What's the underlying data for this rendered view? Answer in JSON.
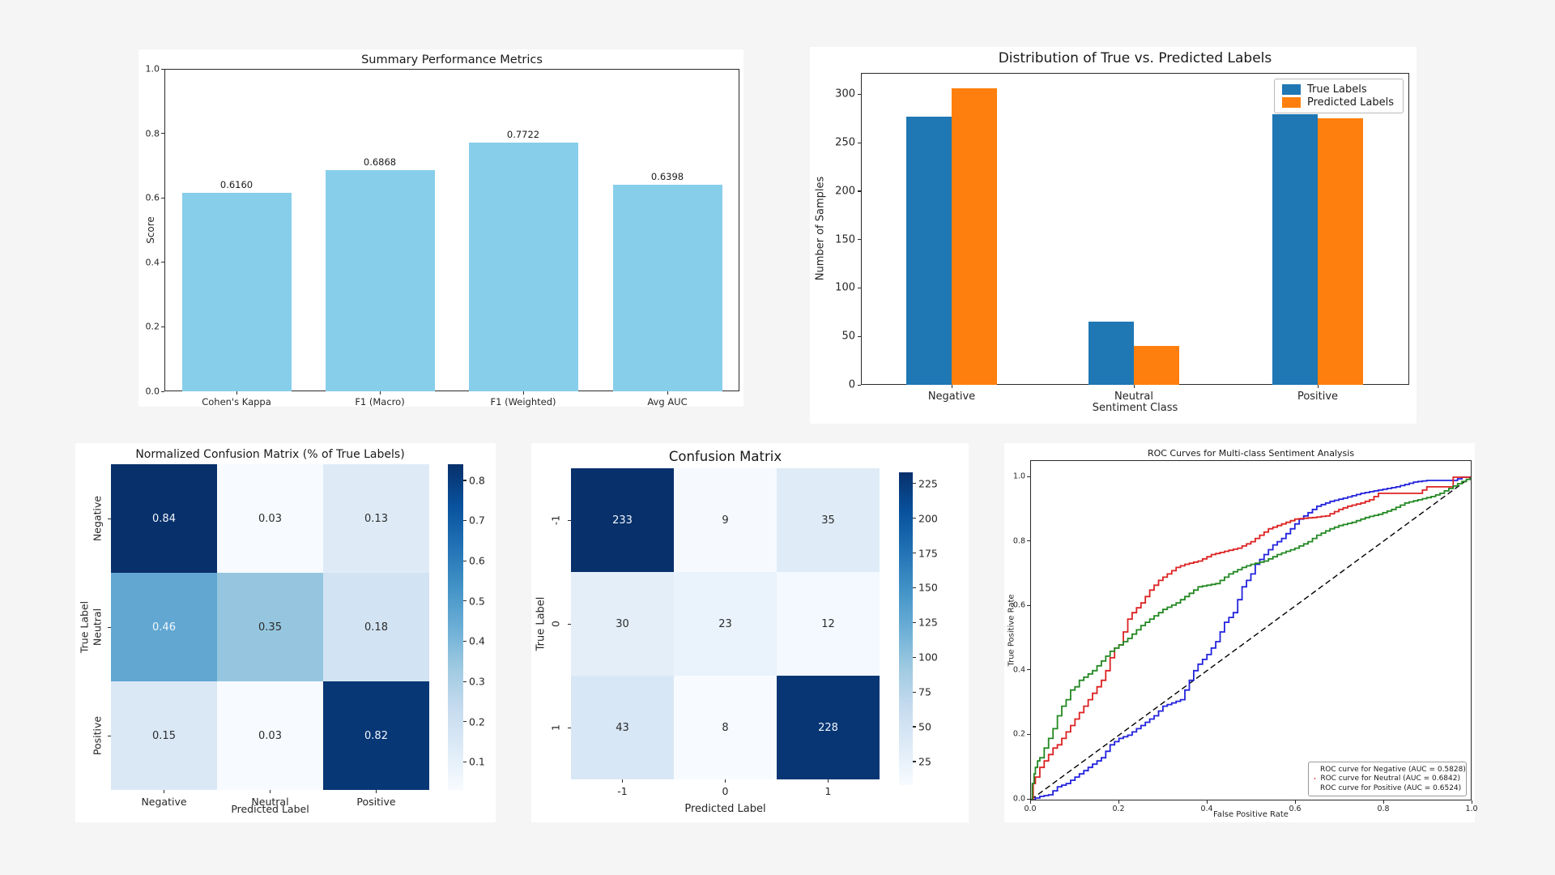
{
  "page": {
    "background": "#f5f5f6",
    "panel_background": "#ffffff"
  },
  "chart_data": [
    {
      "id": "summary",
      "type": "bar",
      "title": "Summary Performance Metrics",
      "xlabel": "",
      "ylabel": "Score",
      "categories": [
        "Cohen's Kappa",
        "F1 (Macro)",
        "F1 (Weighted)",
        "Avg AUC"
      ],
      "values": [
        0.616,
        0.6868,
        0.7722,
        0.6398
      ],
      "value_labels": [
        "0.6160",
        "0.6868",
        "0.7722",
        "0.6398"
      ],
      "bar_color": "#87ceeb",
      "ylim": [
        0.0,
        1.0
      ],
      "yticks": [
        0.0,
        0.2,
        0.4,
        0.6,
        0.8,
        1.0
      ],
      "grid": false,
      "legend_position": "none"
    },
    {
      "id": "distribution",
      "type": "bar",
      "title": "Distribution of True vs. Predicted Labels",
      "xlabel": "Sentiment Class",
      "ylabel": "Number of Samples",
      "categories": [
        "Negative",
        "Neutral",
        "Positive"
      ],
      "series": [
        {
          "name": "True Labels",
          "color": "#1f77b4",
          "values": [
            277,
            65,
            279
          ]
        },
        {
          "name": "Predicted Labels",
          "color": "#ff7f0e",
          "values": [
            306,
            40,
            275
          ]
        }
      ],
      "yticks": [
        0,
        50,
        100,
        150,
        200,
        250,
        300
      ],
      "ylim": [
        0,
        322
      ],
      "grid": false,
      "legend_position": "upper right"
    },
    {
      "id": "normalized_confusion_matrix",
      "type": "heatmap",
      "title": "Normalized Confusion Matrix (% of True Labels)",
      "xlabel": "Predicted Label",
      "ylabel": "True Label",
      "row_labels": [
        "Negative",
        "Neutral",
        "Positive"
      ],
      "col_labels": [
        "Negative",
        "Neutral",
        "Positive"
      ],
      "values": [
        [
          0.84,
          0.03,
          0.13
        ],
        [
          0.46,
          0.35,
          0.18
        ],
        [
          0.15,
          0.03,
          0.82
        ]
      ],
      "vmin": 0.03,
      "vmax": 0.84,
      "colormap": "Blues",
      "colorbar_ticks": [
        0.8,
        0.7,
        0.6,
        0.5,
        0.4,
        0.3,
        0.2,
        0.1
      ],
      "value_decimals": 2
    },
    {
      "id": "confusion_matrix",
      "type": "heatmap",
      "title": "Confusion Matrix",
      "xlabel": "Predicted Label",
      "ylabel": "True Label",
      "row_labels": [
        "-1",
        "0",
        "1"
      ],
      "col_labels": [
        "-1",
        "0",
        "1"
      ],
      "values": [
        [
          233,
          9,
          35
        ],
        [
          30,
          23,
          12
        ],
        [
          43,
          8,
          228
        ]
      ],
      "vmin": 8,
      "vmax": 233,
      "colormap": "Blues",
      "colorbar_ticks": [
        225,
        200,
        175,
        150,
        125,
        100,
        75,
        50,
        25
      ],
      "value_decimals": 0
    },
    {
      "id": "roc",
      "type": "line",
      "title": "ROC Curves for Multi-class Sentiment Analysis",
      "xlabel": "False Positive Rate",
      "ylabel": "True Positive Rate",
      "xticks": [
        0.0,
        0.2,
        0.4,
        0.6,
        0.8,
        1.0
      ],
      "yticks": [
        0.0,
        0.2,
        0.4,
        0.6,
        0.8,
        1.0
      ],
      "xlim": [
        0.0,
        1.0
      ],
      "ylim": [
        0.0,
        1.05
      ],
      "legend_position": "lower right",
      "diagonal_reference": {
        "style": "dashed",
        "color": "#000000",
        "from": [
          0,
          0
        ],
        "to": [
          1,
          1
        ]
      },
      "series": [
        {
          "name": "ROC curve for Negative (AUC = 0.5828)",
          "auc": 0.5828,
          "color": "#2222dd",
          "points": [
            [
              0,
              0
            ],
            [
              0.02,
              0.01
            ],
            [
              0.04,
              0.015
            ],
            [
              0.06,
              0.04
            ],
            [
              0.08,
              0.05
            ],
            [
              0.1,
              0.07
            ],
            [
              0.12,
              0.09
            ],
            [
              0.14,
              0.11
            ],
            [
              0.16,
              0.13
            ],
            [
              0.18,
              0.17
            ],
            [
              0.2,
              0.19
            ],
            [
              0.22,
              0.2
            ],
            [
              0.24,
              0.22
            ],
            [
              0.26,
              0.24
            ],
            [
              0.28,
              0.26
            ],
            [
              0.3,
              0.29
            ],
            [
              0.32,
              0.3
            ],
            [
              0.34,
              0.31
            ],
            [
              0.35,
              0.34
            ],
            [
              0.36,
              0.37
            ],
            [
              0.37,
              0.4
            ],
            [
              0.38,
              0.42
            ],
            [
              0.4,
              0.45
            ],
            [
              0.42,
              0.49
            ],
            [
              0.43,
              0.52
            ],
            [
              0.44,
              0.55
            ],
            [
              0.46,
              0.58
            ],
            [
              0.47,
              0.62
            ],
            [
              0.48,
              0.66
            ],
            [
              0.5,
              0.7
            ],
            [
              0.51,
              0.73
            ],
            [
              0.53,
              0.76
            ],
            [
              0.55,
              0.79
            ],
            [
              0.57,
              0.81
            ],
            [
              0.59,
              0.84
            ],
            [
              0.61,
              0.87
            ],
            [
              0.63,
              0.89
            ],
            [
              0.65,
              0.91
            ],
            [
              0.68,
              0.925
            ],
            [
              0.71,
              0.935
            ],
            [
              0.75,
              0.95
            ],
            [
              0.79,
              0.96
            ],
            [
              0.83,
              0.97
            ],
            [
              0.87,
              0.985
            ],
            [
              0.9,
              0.99
            ],
            [
              0.96,
              0.99
            ],
            [
              0.98,
              1
            ],
            [
              1,
              1
            ]
          ]
        },
        {
          "name": "ROC curve for Neutral (AUC = 0.6842)",
          "auc": 0.6842,
          "color": "#dd2222",
          "points": [
            [
              0,
              0
            ],
            [
              0.005,
              0.05
            ],
            [
              0.01,
              0.07
            ],
            [
              0.02,
              0.1
            ],
            [
              0.03,
              0.12
            ],
            [
              0.04,
              0.14
            ],
            [
              0.05,
              0.16
            ],
            [
              0.06,
              0.17
            ],
            [
              0.07,
              0.19
            ],
            [
              0.08,
              0.21
            ],
            [
              0.09,
              0.23
            ],
            [
              0.1,
              0.25
            ],
            [
              0.11,
              0.27
            ],
            [
              0.12,
              0.29
            ],
            [
              0.13,
              0.31
            ],
            [
              0.14,
              0.33
            ],
            [
              0.15,
              0.35
            ],
            [
              0.16,
              0.37
            ],
            [
              0.17,
              0.4
            ],
            [
              0.18,
              0.44
            ],
            [
              0.19,
              0.47
            ],
            [
              0.2,
              0.48
            ],
            [
              0.21,
              0.52
            ],
            [
              0.22,
              0.56
            ],
            [
              0.23,
              0.58
            ],
            [
              0.25,
              0.61
            ],
            [
              0.27,
              0.65
            ],
            [
              0.29,
              0.68
            ],
            [
              0.31,
              0.7
            ],
            [
              0.33,
              0.72
            ],
            [
              0.35,
              0.73
            ],
            [
              0.38,
              0.74
            ],
            [
              0.41,
              0.76
            ],
            [
              0.44,
              0.77
            ],
            [
              0.47,
              0.78
            ],
            [
              0.5,
              0.8
            ],
            [
              0.52,
              0.82
            ],
            [
              0.54,
              0.84
            ],
            [
              0.56,
              0.85
            ],
            [
              0.58,
              0.86
            ],
            [
              0.6,
              0.87
            ],
            [
              0.64,
              0.875
            ],
            [
              0.67,
              0.88
            ],
            [
              0.7,
              0.9
            ],
            [
              0.72,
              0.91
            ],
            [
              0.75,
              0.92
            ],
            [
              0.77,
              0.93
            ],
            [
              0.79,
              0.95
            ],
            [
              0.88,
              0.95
            ],
            [
              0.9,
              0.97
            ],
            [
              0.95,
              0.97
            ],
            [
              0.96,
              1
            ],
            [
              1,
              1
            ]
          ]
        },
        {
          "name": "ROC curve for Positive (AUC = 0.6524)",
          "auc": 0.6524,
          "color": "#228822",
          "points": [
            [
              0,
              0
            ],
            [
              0.003,
              0.05
            ],
            [
              0.007,
              0.08
            ],
            [
              0.01,
              0.1
            ],
            [
              0.015,
              0.12
            ],
            [
              0.02,
              0.13
            ],
            [
              0.03,
              0.16
            ],
            [
              0.04,
              0.19
            ],
            [
              0.05,
              0.22
            ],
            [
              0.06,
              0.26
            ],
            [
              0.07,
              0.29
            ],
            [
              0.08,
              0.31
            ],
            [
              0.09,
              0.34
            ],
            [
              0.1,
              0.35
            ],
            [
              0.11,
              0.37
            ],
            [
              0.12,
              0.38
            ],
            [
              0.13,
              0.39
            ],
            [
              0.14,
              0.4
            ],
            [
              0.16,
              0.43
            ],
            [
              0.18,
              0.46
            ],
            [
              0.2,
              0.48
            ],
            [
              0.22,
              0.5
            ],
            [
              0.25,
              0.54
            ],
            [
              0.28,
              0.57
            ],
            [
              0.3,
              0.59
            ],
            [
              0.33,
              0.61
            ],
            [
              0.35,
              0.63
            ],
            [
              0.38,
              0.66
            ],
            [
              0.42,
              0.67
            ],
            [
              0.45,
              0.7
            ],
            [
              0.48,
              0.72
            ],
            [
              0.5,
              0.73
            ],
            [
              0.53,
              0.74
            ],
            [
              0.56,
              0.76
            ],
            [
              0.58,
              0.77
            ],
            [
              0.6,
              0.78
            ],
            [
              0.63,
              0.8
            ],
            [
              0.65,
              0.82
            ],
            [
              0.68,
              0.84
            ],
            [
              0.7,
              0.85
            ],
            [
              0.73,
              0.86
            ],
            [
              0.76,
              0.875
            ],
            [
              0.79,
              0.885
            ],
            [
              0.82,
              0.9
            ],
            [
              0.85,
              0.92
            ],
            [
              0.88,
              0.93
            ],
            [
              0.91,
              0.94
            ],
            [
              0.93,
              0.95
            ],
            [
              0.95,
              0.965
            ],
            [
              0.97,
              0.98
            ],
            [
              1,
              1
            ]
          ]
        }
      ]
    }
  ]
}
